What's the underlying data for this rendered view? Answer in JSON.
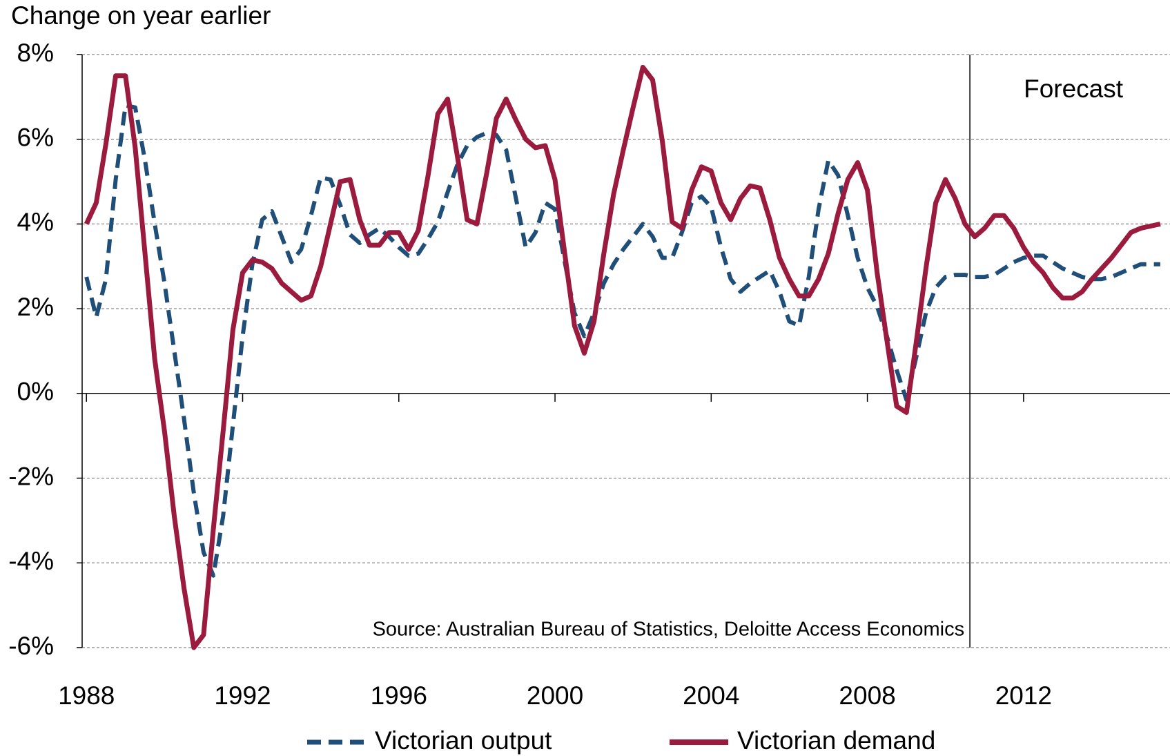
{
  "chart_data": {
    "type": "line",
    "y_axis_label": "Change on year earlier",
    "annotations": [
      {
        "text": "Forecast",
        "x": 2010.625
      },
      {
        "text": "Source: Australian Bureau of Statistics, Deloitte Access Economics"
      }
    ],
    "x": [
      1988,
      1988.25,
      1988.5,
      1988.75,
      1989,
      1989.25,
      1989.5,
      1989.75,
      1990,
      1990.25,
      1990.5,
      1990.75,
      1991,
      1991.25,
      1991.5,
      1991.75,
      1992,
      1992.25,
      1992.5,
      1992.75,
      1993,
      1993.25,
      1993.5,
      1993.75,
      1994,
      1994.25,
      1994.5,
      1994.75,
      1995,
      1995.25,
      1995.5,
      1995.75,
      1996,
      1996.25,
      1996.5,
      1996.75,
      1997,
      1997.25,
      1997.5,
      1997.75,
      1998,
      1998.25,
      1998.5,
      1998.75,
      1999,
      1999.25,
      1999.5,
      1999.75,
      2000,
      2000.25,
      2000.5,
      2000.75,
      2001,
      2001.25,
      2001.5,
      2001.75,
      2002,
      2002.25,
      2002.5,
      2002.75,
      2003,
      2003.25,
      2003.5,
      2003.75,
      2004,
      2004.25,
      2004.5,
      2004.75,
      2005,
      2005.25,
      2005.5,
      2005.75,
      2006,
      2006.25,
      2006.5,
      2006.75,
      2007,
      2007.25,
      2007.5,
      2007.75,
      2008,
      2008.25,
      2008.5,
      2008.75,
      2009,
      2009.25,
      2009.5,
      2009.75,
      2010,
      2010.25,
      2010.5,
      2010.75,
      2011,
      2011.25,
      2011.5,
      2011.75,
      2012,
      2012.25,
      2012.5,
      2012.75,
      2013,
      2013.25,
      2013.5,
      2013.75,
      2014,
      2014.25,
      2014.5,
      2014.75,
      2015,
      2015.25,
      2015.5
    ],
    "series": [
      {
        "name": "Victorian output",
        "color": "#1f4e79",
        "dashed": true,
        "values": [
          2.75,
          1.8,
          2.7,
          5.05,
          6.8,
          6.75,
          5.5,
          4.0,
          2.6,
          1.0,
          -0.6,
          -2.35,
          -3.75,
          -4.3,
          -2.9,
          -0.75,
          1.35,
          3.05,
          4.1,
          4.3,
          3.7,
          3.1,
          3.4,
          4.2,
          5.1,
          5.05,
          4.45,
          3.75,
          3.55,
          3.75,
          3.9,
          3.7,
          3.45,
          3.25,
          3.3,
          3.65,
          4.05,
          4.75,
          5.4,
          5.85,
          6.05,
          6.15,
          6.1,
          5.75,
          4.6,
          3.45,
          3.8,
          4.5,
          4.35,
          3.1,
          1.9,
          1.35,
          1.9,
          2.6,
          3.05,
          3.4,
          3.7,
          4.0,
          3.7,
          3.2,
          3.2,
          3.8,
          4.5,
          4.65,
          4.4,
          3.45,
          2.7,
          2.4,
          2.6,
          2.75,
          2.9,
          2.4,
          1.7,
          1.6,
          2.75,
          4.35,
          5.5,
          5.15,
          4.2,
          3.2,
          2.5,
          2.05,
          1.35,
          0.55,
          -0.15,
          0.85,
          1.9,
          2.5,
          2.75,
          2.8,
          2.8,
          2.75,
          2.75,
          2.8,
          2.95,
          3.1,
          3.2,
          3.25,
          3.25,
          3.1,
          2.95,
          2.85,
          2.75,
          2.7,
          2.7,
          2.75,
          2.85,
          2.95,
          3.05,
          3.05,
          3.05
        ]
      },
      {
        "name": "Victorian demand",
        "color": "#9b1b3e",
        "dashed": false,
        "values": [
          4.0,
          4.5,
          5.9,
          7.5,
          7.5,
          5.8,
          3.3,
          0.8,
          -0.9,
          -2.9,
          -4.6,
          -6.0,
          -5.7,
          -3.2,
          -0.9,
          1.5,
          2.85,
          3.15,
          3.1,
          2.95,
          2.6,
          2.4,
          2.2,
          2.3,
          3.0,
          4.0,
          5.0,
          5.05,
          4.1,
          3.5,
          3.5,
          3.8,
          3.8,
          3.4,
          3.85,
          5.15,
          6.6,
          6.95,
          5.6,
          4.1,
          4.0,
          5.2,
          6.5,
          6.95,
          6.45,
          6.0,
          5.8,
          5.85,
          5.05,
          3.3,
          1.6,
          0.95,
          1.7,
          3.3,
          4.7,
          5.75,
          6.75,
          7.7,
          7.4,
          5.95,
          4.05,
          3.9,
          4.8,
          5.35,
          5.25,
          4.5,
          4.1,
          4.6,
          4.9,
          4.85,
          4.1,
          3.2,
          2.7,
          2.3,
          2.3,
          2.7,
          3.3,
          4.25,
          5.05,
          5.45,
          4.8,
          2.85,
          1.25,
          -0.3,
          -0.45,
          1.2,
          2.95,
          4.5,
          5.05,
          4.6,
          4.0,
          3.7,
          3.9,
          4.2,
          4.2,
          3.9,
          3.45,
          3.1,
          2.85,
          2.5,
          2.25,
          2.25,
          2.4,
          2.7,
          2.95,
          3.2,
          3.5,
          3.8,
          3.9,
          3.95,
          4.0
        ]
      }
    ],
    "xlim": [
      1987.89,
      2015.75
    ],
    "xticks": [
      1988,
      1992,
      1996,
      2000,
      2004,
      2008,
      2012
    ],
    "ylim": [
      -6,
      8
    ],
    "yticks": [
      {
        "value": -6,
        "label": "-6%"
      },
      {
        "value": -4,
        "label": "-4%"
      },
      {
        "value": -2,
        "label": "-2%"
      },
      {
        "value": 0,
        "label": "0%"
      },
      {
        "value": 2,
        "label": "2%"
      },
      {
        "value": 4,
        "label": "4%"
      },
      {
        "value": 6,
        "label": "6%"
      },
      {
        "value": 8,
        "label": "8%"
      }
    ],
    "grid": true,
    "legend": "bottom"
  }
}
